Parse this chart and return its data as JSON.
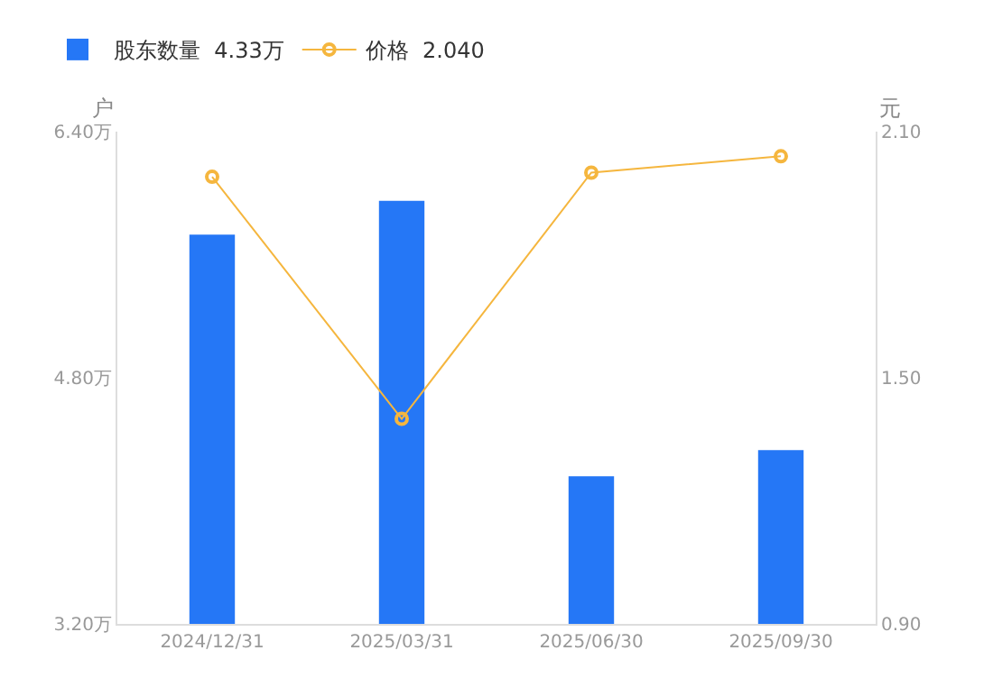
{
  "chart_data": {
    "type": "bar",
    "categories": [
      "2024/12/31",
      "2025/03/31",
      "2025/06/30",
      "2025/09/30"
    ],
    "series": [
      {
        "name": "股东数量  4.33万",
        "color": "#2577f6",
        "values": [
          5.73,
          5.95,
          4.16,
          4.33
        ]
      },
      {
        "name": "价格  2.040",
        "type": "line",
        "axis": "y2",
        "color": "#f5b63e",
        "values": [
          1.99,
          1.4,
          2.0,
          2.04
        ]
      }
    ],
    "ylabel": "户",
    "y2label": "元",
    "ylim": [
      3.2,
      6.4
    ],
    "yticks": [
      {
        "value": 3.2,
        "label": "3.20万"
      },
      {
        "value": 4.8,
        "label": "4.80万"
      },
      {
        "value": 6.4,
        "label": "6.40万"
      }
    ],
    "y2lim": [
      0.9,
      2.1
    ],
    "y2ticks": [
      {
        "value": 0.9,
        "label": "0.90"
      },
      {
        "value": 1.5,
        "label": "1.50"
      },
      {
        "value": 2.1,
        "label": "2.10"
      }
    ],
    "legend": "top left",
    "marker": "circle",
    "line_style": "solid",
    "grid": false
  }
}
